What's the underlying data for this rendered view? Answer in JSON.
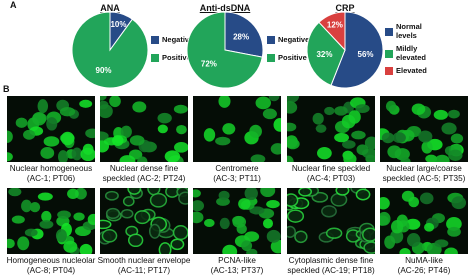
{
  "panel_a_label": "A",
  "chart_data": [
    {
      "type": "pie",
      "title": "ANA",
      "categories": [
        "Negative",
        "Positive"
      ],
      "values": [
        10,
        90
      ],
      "value_labels": [
        "10%",
        "90%"
      ],
      "colors": [
        "#274b87",
        "#22a55a"
      ]
    },
    {
      "type": "pie",
      "title": "Anti-dsDNA",
      "categories": [
        "Negative",
        "Positive"
      ],
      "values": [
        28,
        72
      ],
      "value_labels": [
        "28%",
        "72%"
      ],
      "colors": [
        "#274b87",
        "#22a55a"
      ]
    },
    {
      "type": "pie",
      "title": "CRP",
      "categories": [
        "Normal levels",
        "Mildly elevated",
        "Elevated"
      ],
      "values": [
        56,
        32,
        12
      ],
      "value_labels": [
        "56%",
        "32%",
        "12%"
      ],
      "colors": [
        "#274b87",
        "#22a55a",
        "#d9403f"
      ]
    }
  ],
  "panel_b_label": "B",
  "images": [
    {
      "line1": "Nuclear homogeneous",
      "line2": "(AC-1; PT06)"
    },
    {
      "line1": "Nuclear dense fine",
      "line2": "speckled (AC-2; PT24)"
    },
    {
      "line1": "Centromere",
      "line2": "(AC-3; PT11)"
    },
    {
      "line1": "Nuclear fine speckled",
      "line2": "(AC-4; PT03)"
    },
    {
      "line1": "Nuclear large/coarse",
      "line2": "speckled (AC-5; PT35)"
    },
    {
      "line1": "Homogeneous nucleolar",
      "line2": "(AC-8; PT04)"
    },
    {
      "line1": "Smooth nuclear envelope",
      "line2": "(AC-11; PT17)"
    },
    {
      "line1": "PCNA-like",
      "line2": "(AC-13; PT37)"
    },
    {
      "line1": "Cytoplasmic dense fine",
      "line2": "speckled (AC-19; PT18)"
    },
    {
      "line1": "NuMA-like",
      "line2": "(AC-26; PT46)"
    }
  ]
}
